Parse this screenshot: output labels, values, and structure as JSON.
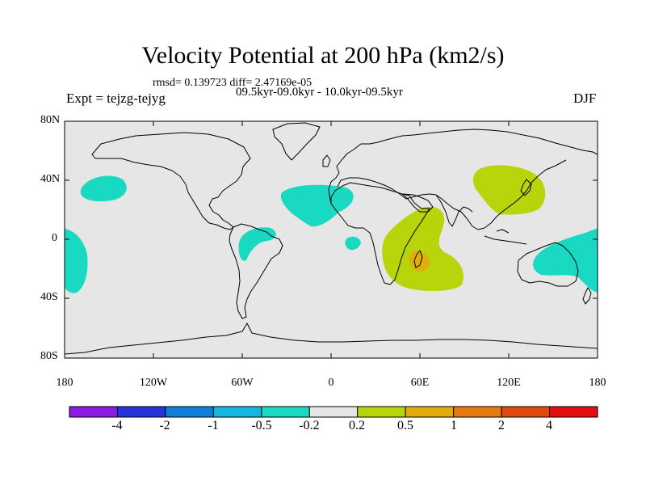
{
  "title": "Velocity Potential at 200 hPa (km2/s)",
  "stats_line": "rmsd= 0.139723 diff= 2.47169e-05",
  "period_line": "09.5kyr-09.0kyr - 10.0kyr-09.5kyr",
  "experiment_label": "Expt = tejzg-tejyg",
  "season_label": "DJF",
  "latitude_labels": [
    "80N",
    "40N",
    "0",
    "40S",
    "80S"
  ],
  "longitude_labels": [
    "180",
    "120W",
    "60W",
    "0",
    "60E",
    "120E",
    "180"
  ],
  "colorbar_labels": [
    "-4",
    "-2",
    "-1",
    "-0.5",
    "-0.2",
    "0.2",
    "0.5",
    "1",
    "2",
    "4"
  ],
  "colorbar_colors": [
    "#8a1ce6",
    "#2633d9",
    "#0f80d9",
    "#12b8e0",
    "#1ad9c2",
    "#e6e6e6",
    "#b8d40a",
    "#e0ad0a",
    "#e67a0f",
    "#e04a0f",
    "#e60f0f"
  ],
  "map_colors": {
    "background": "#e6e6e6",
    "negative": "#1ad9c2",
    "positive": "#b8d40a",
    "strong_positive": "#e0ad0a",
    "coast": "#000000"
  }
}
